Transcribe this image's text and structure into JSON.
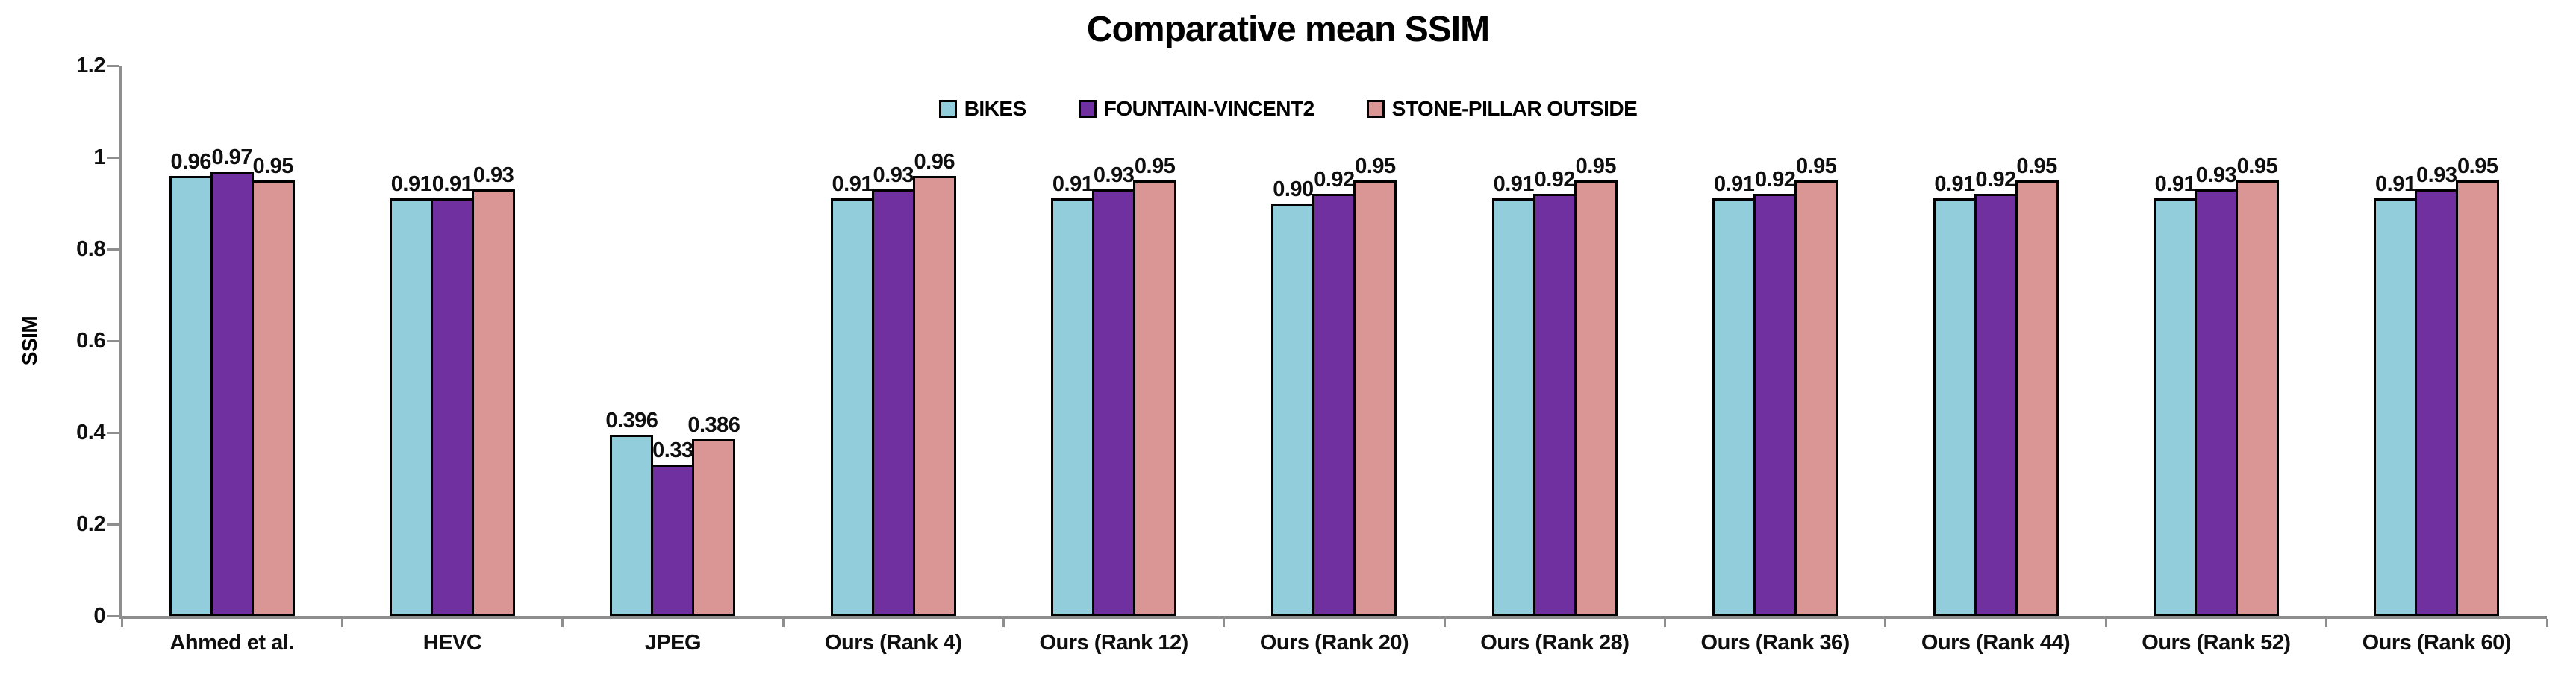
{
  "chart_data": {
    "type": "bar",
    "title": "Comparative mean SSIM",
    "xlabel": "",
    "ylabel": "SSIM",
    "ylim": [
      0,
      1.2
    ],
    "yticks": [
      0,
      0.2,
      0.4,
      0.6,
      0.8,
      1,
      1.2
    ],
    "ytick_labels": [
      "0",
      "0.2",
      "0.4",
      "0.6",
      "0.8",
      "1",
      "1.2"
    ],
    "grid": false,
    "legend_position": "top-center",
    "axis_color": "#8E8E8E",
    "bar_border_color": "#000000",
    "categories": [
      "Ahmed et al.",
      "HEVC",
      "JPEG",
      "Ours (Rank 4)",
      "Ours (Rank 12)",
      "Ours (Rank 20)",
      "Ours (Rank 28)",
      "Ours (Rank 36)",
      "Ours (Rank 44)",
      "Ours (Rank 52)",
      "Ours (Rank 60)"
    ],
    "series": [
      {
        "name": "BIKES",
        "color": "#92CDDC",
        "values": [
          0.96,
          0.91,
          0.396,
          0.91,
          0.91,
          0.9,
          0.91,
          0.91,
          0.91,
          0.91,
          0.91
        ],
        "labels": [
          "0.96",
          "0.91",
          "0.396",
          "0.91",
          "0.91",
          "0.90",
          "0.91",
          "0.91",
          "0.91",
          "0.91",
          "0.91"
        ]
      },
      {
        "name": "FOUNTAIN-VINCENT2",
        "color": "#7030A0",
        "values": [
          0.97,
          0.91,
          0.33,
          0.93,
          0.93,
          0.92,
          0.92,
          0.92,
          0.92,
          0.93,
          0.93
        ],
        "labels": [
          "0.97",
          "0.91",
          "0.33",
          "0.93",
          "0.93",
          "0.92",
          "0.92",
          "0.92",
          "0.92",
          "0.93",
          "0.93"
        ]
      },
      {
        "name": "STONE-PILLAR OUTSIDE",
        "color": "#D99694",
        "values": [
          0.95,
          0.93,
          0.386,
          0.96,
          0.95,
          0.95,
          0.95,
          0.95,
          0.95,
          0.95,
          0.95
        ],
        "labels": [
          "0.95",
          "0.93",
          "0.386",
          "0.96",
          "0.95",
          "0.95",
          "0.95",
          "0.95",
          "0.95",
          "0.95",
          "0.95"
        ]
      }
    ]
  }
}
